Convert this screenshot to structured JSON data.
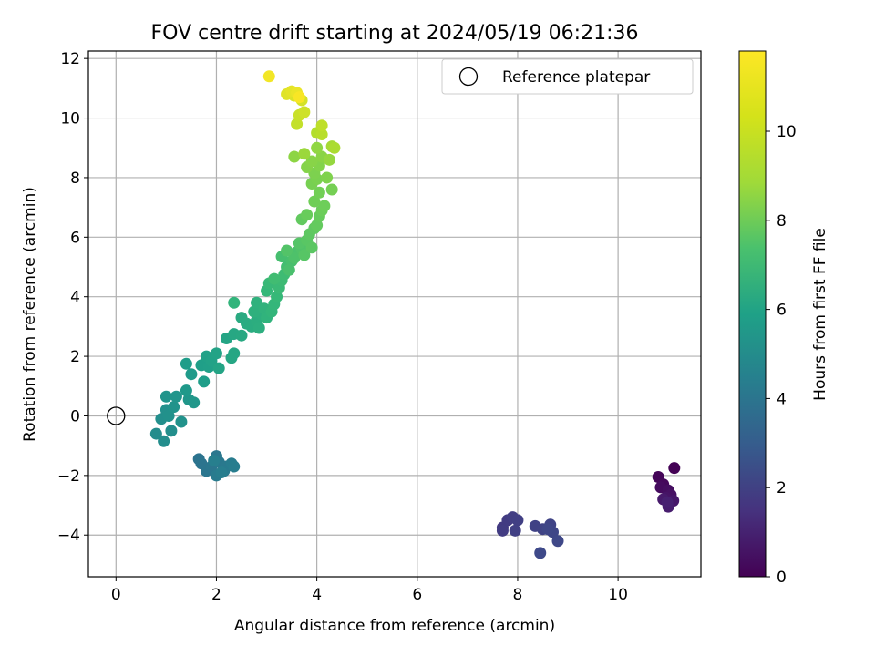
{
  "chart_data": {
    "type": "scatter",
    "title": "FOV centre drift starting at 2024/05/19 06:21:36",
    "xlabel": "Angular distance from reference (arcmin)",
    "ylabel": "Rotation from reference (arcmin)",
    "xlim": [
      -0.55,
      11.65
    ],
    "ylim": [
      -5.4,
      12.25
    ],
    "xticks": [
      0,
      2,
      4,
      6,
      8,
      10
    ],
    "yticks": [
      -4,
      -2,
      0,
      2,
      4,
      6,
      8,
      10,
      12
    ],
    "grid": true,
    "legend": {
      "placement": "top-right",
      "entries": [
        "Reference platepar"
      ]
    },
    "reference_point": {
      "x": 0,
      "y": 0,
      "label": "Reference platepar"
    },
    "colorbar": {
      "label": "Hours from first FF file",
      "range": [
        0,
        11.8
      ],
      "ticks": [
        0,
        2,
        4,
        6,
        8,
        10
      ],
      "colormap": "viridis"
    },
    "points": [
      [
        11.12,
        -1.75,
        0.05
      ],
      [
        10.8,
        -2.05,
        0.15
      ],
      [
        10.9,
        -2.3,
        0.25
      ],
      [
        10.85,
        -2.4,
        0.35
      ],
      [
        11.0,
        -2.5,
        0.45
      ],
      [
        11.05,
        -2.65,
        0.55
      ],
      [
        10.95,
        -2.75,
        0.65
      ],
      [
        11.1,
        -2.85,
        0.75
      ],
      [
        10.9,
        -2.8,
        0.85
      ],
      [
        11.0,
        -3.05,
        0.95
      ],
      [
        10.98,
        -2.9,
        1.05
      ],
      [
        7.7,
        -3.75,
        2.0
      ],
      [
        7.8,
        -3.5,
        2.05
      ],
      [
        7.7,
        -3.85,
        2.1
      ],
      [
        7.9,
        -3.4,
        2.15
      ],
      [
        8.0,
        -3.5,
        2.2
      ],
      [
        7.95,
        -3.85,
        2.25
      ],
      [
        8.35,
        -3.7,
        2.3
      ],
      [
        8.5,
        -3.8,
        2.35
      ],
      [
        8.65,
        -3.65,
        2.4
      ],
      [
        8.7,
        -3.9,
        2.45
      ],
      [
        8.6,
        -3.8,
        2.5
      ],
      [
        8.8,
        -4.2,
        2.55
      ],
      [
        8.45,
        -4.6,
        2.6
      ],
      [
        1.65,
        -1.45,
        4.5
      ],
      [
        1.7,
        -1.6,
        4.55
      ],
      [
        1.8,
        -1.85,
        4.6
      ],
      [
        1.9,
        -1.7,
        4.65
      ],
      [
        2.0,
        -1.35,
        4.7
      ],
      [
        2.05,
        -1.55,
        4.75
      ],
      [
        2.2,
        -1.7,
        4.8
      ],
      [
        2.15,
        -1.85,
        4.85
      ],
      [
        2.0,
        -2.0,
        4.9
      ],
      [
        2.3,
        -1.6,
        4.95
      ],
      [
        2.35,
        -1.7,
        5.0
      ],
      [
        2.1,
        -1.9,
        5.05
      ],
      [
        1.95,
        -1.5,
        5.1
      ],
      [
        0.8,
        -0.6,
        5.7
      ],
      [
        0.95,
        -0.85,
        5.75
      ],
      [
        1.1,
        -0.5,
        5.8
      ],
      [
        0.9,
        -0.1,
        5.85
      ],
      [
        1.0,
        0.2,
        5.9
      ],
      [
        1.05,
        0.0,
        5.95
      ],
      [
        1.3,
        -0.2,
        6.0
      ],
      [
        1.15,
        0.3,
        6.05
      ],
      [
        1.0,
        0.65,
        6.1
      ],
      [
        1.2,
        0.65,
        6.15
      ],
      [
        1.45,
        0.55,
        6.2
      ],
      [
        1.55,
        0.45,
        6.25
      ],
      [
        1.4,
        0.85,
        6.3
      ],
      [
        1.5,
        1.4,
        6.4
      ],
      [
        1.4,
        1.75,
        6.5
      ],
      [
        1.75,
        1.15,
        6.55
      ],
      [
        1.7,
        1.7,
        6.6
      ],
      [
        1.85,
        1.65,
        6.65
      ],
      [
        1.8,
        2.0,
        6.7
      ],
      [
        1.9,
        1.85,
        6.75
      ],
      [
        2.0,
        2.1,
        6.8
      ],
      [
        2.05,
        1.6,
        6.85
      ],
      [
        2.2,
        2.6,
        6.9
      ],
      [
        2.3,
        1.95,
        6.95
      ],
      [
        2.35,
        2.1,
        7.0
      ],
      [
        2.35,
        2.75,
        7.05
      ],
      [
        2.5,
        2.7,
        7.1
      ],
      [
        2.5,
        3.3,
        7.2
      ],
      [
        2.6,
        3.1,
        7.25
      ],
      [
        2.7,
        3.0,
        7.3
      ],
      [
        2.8,
        3.2,
        7.35
      ],
      [
        2.85,
        2.95,
        7.4
      ],
      [
        2.9,
        3.4,
        7.45
      ],
      [
        2.75,
        3.5,
        7.5
      ],
      [
        2.8,
        3.8,
        7.55
      ],
      [
        2.95,
        3.6,
        7.6
      ],
      [
        3.0,
        3.3,
        7.65
      ],
      [
        2.35,
        3.8,
        7.7
      ],
      [
        3.1,
        3.5,
        7.75
      ],
      [
        3.15,
        3.75,
        7.8
      ],
      [
        3.0,
        4.2,
        7.85
      ],
      [
        3.2,
        4.0,
        7.9
      ],
      [
        3.05,
        4.45,
        7.95
      ],
      [
        3.25,
        4.3,
        8.0
      ],
      [
        3.3,
        4.55,
        8.05
      ],
      [
        3.35,
        4.75,
        8.1
      ],
      [
        3.15,
        4.6,
        8.15
      ],
      [
        3.4,
        5.0,
        8.2
      ],
      [
        3.3,
        5.35,
        8.25
      ],
      [
        3.5,
        5.2,
        8.3
      ],
      [
        3.45,
        4.9,
        8.35
      ],
      [
        3.6,
        5.5,
        8.4
      ],
      [
        3.55,
        5.3,
        8.45
      ],
      [
        3.7,
        5.6,
        8.5
      ],
      [
        3.4,
        5.55,
        8.55
      ],
      [
        3.65,
        5.8,
        8.6
      ],
      [
        3.75,
        5.4,
        8.65
      ],
      [
        3.8,
        5.9,
        8.7
      ],
      [
        3.9,
        5.65,
        8.75
      ],
      [
        3.85,
        6.1,
        8.8
      ],
      [
        3.95,
        6.3,
        8.85
      ],
      [
        3.7,
        6.6,
        8.9
      ],
      [
        4.0,
        6.4,
        8.95
      ],
      [
        4.05,
        6.7,
        9.0
      ],
      [
        3.8,
        6.75,
        9.05
      ],
      [
        4.1,
        6.9,
        9.1
      ],
      [
        4.15,
        7.05,
        9.15
      ],
      [
        3.95,
        7.2,
        9.2
      ],
      [
        4.05,
        7.5,
        9.25
      ],
      [
        4.3,
        7.6,
        9.3
      ],
      [
        3.9,
        7.8,
        9.35
      ],
      [
        4.0,
        7.95,
        9.4
      ],
      [
        3.95,
        8.15,
        9.45
      ],
      [
        4.2,
        8.0,
        9.5
      ],
      [
        4.05,
        8.4,
        9.55
      ],
      [
        3.8,
        8.35,
        9.6
      ],
      [
        3.9,
        8.55,
        9.65
      ],
      [
        4.1,
        8.7,
        9.7
      ],
      [
        3.55,
        8.7,
        9.75
      ],
      [
        4.0,
        9.0,
        9.8
      ],
      [
        4.25,
        8.6,
        9.9
      ],
      [
        3.75,
        8.8,
        10.0
      ],
      [
        4.3,
        9.05,
        10.2
      ],
      [
        4.35,
        9.0,
        10.3
      ],
      [
        4.0,
        9.5,
        10.45
      ],
      [
        4.1,
        9.45,
        10.55
      ],
      [
        4.1,
        9.75,
        10.65
      ],
      [
        3.6,
        9.8,
        10.75
      ],
      [
        3.65,
        10.1,
        10.85
      ],
      [
        3.75,
        10.2,
        10.95
      ],
      [
        3.7,
        10.6,
        11.05
      ],
      [
        3.55,
        10.75,
        11.15
      ],
      [
        3.4,
        10.8,
        11.25
      ],
      [
        3.5,
        10.9,
        11.35
      ],
      [
        3.6,
        10.85,
        11.45
      ],
      [
        3.05,
        11.4,
        11.6
      ],
      [
        3.65,
        10.7,
        11.7
      ]
    ]
  }
}
